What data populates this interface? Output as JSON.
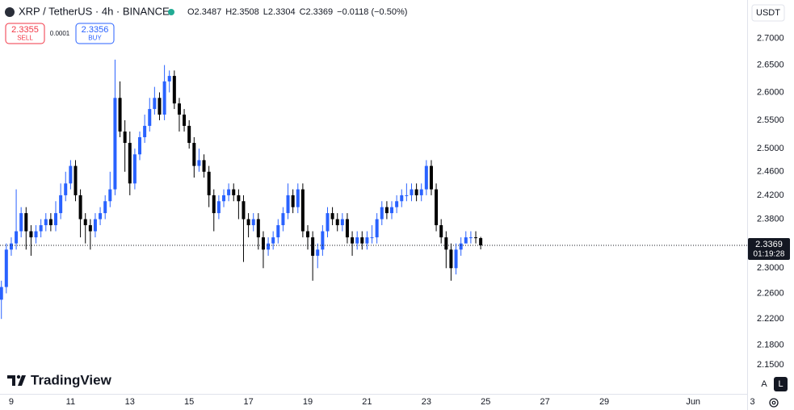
{
  "header": {
    "symbol": "XRP / TetherUS · 4h · BINANCE",
    "ohlc": [
      "O2.3487",
      "H2.3508",
      "L2.3304",
      "C2.3369",
      "−0.0118 (−0.50%)"
    ]
  },
  "trade": {
    "sell_price": "2.3355",
    "sell_label": "SELL",
    "spread": "0.0001",
    "buy_price": "2.3356",
    "buy_label": "BUY"
  },
  "currency": "USDT",
  "countdown": "01:19:28",
  "brand": "TradingView",
  "buttons": [
    "A",
    "L"
  ],
  "chart_data": {
    "type": "candlestick",
    "log_scale": true,
    "grid": false,
    "up_color": "#2962ff",
    "down_color": "#000000",
    "x": [
      8.667,
      8.833,
      9,
      9.167,
      9.333,
      9.5,
      9.667,
      9.833,
      10,
      10.167,
      10.333,
      10.5,
      10.667,
      10.833,
      11,
      11.167,
      11.333,
      11.5,
      11.667,
      11.833,
      12,
      12.167,
      12.333,
      12.5,
      12.667,
      12.833,
      13,
      13.167,
      13.333,
      13.5,
      13.667,
      13.833,
      14,
      14.167,
      14.333,
      14.5,
      14.667,
      14.833,
      15,
      15.167,
      15.333,
      15.5,
      15.667,
      15.833,
      16,
      16.167,
      16.333,
      16.5,
      16.667,
      16.833,
      17,
      17.167,
      17.333,
      17.5,
      17.667,
      17.833,
      18,
      18.167,
      18.333,
      18.5,
      18.667,
      18.833,
      19,
      19.167,
      19.333,
      19.5,
      19.667,
      19.833,
      20,
      20.167,
      20.333,
      20.5,
      20.667,
      20.833,
      21,
      21.167,
      21.333,
      21.5,
      21.667,
      21.833,
      22,
      22.167,
      22.333,
      22.5,
      22.667,
      22.833,
      23,
      23.167,
      23.333,
      23.5,
      23.667,
      23.833,
      24,
      24.167,
      24.333,
      24.5,
      24.667,
      24.833
    ],
    "open": [
      2.25,
      2.27,
      2.33,
      2.34,
      2.36,
      2.39,
      2.36,
      2.35,
      2.36,
      2.37,
      2.38,
      2.37,
      2.39,
      2.42,
      2.44,
      2.47,
      2.42,
      2.38,
      2.37,
      2.36,
      2.38,
      2.39,
      2.41,
      2.43,
      2.59,
      2.53,
      2.51,
      2.44,
      2.49,
      2.52,
      2.54,
      2.57,
      2.59,
      2.56,
      2.62,
      2.63,
      2.58,
      2.56,
      2.54,
      2.51,
      2.47,
      2.48,
      2.46,
      2.42,
      2.39,
      2.41,
      2.42,
      2.43,
      2.42,
      2.41,
      2.38,
      2.37,
      2.38,
      2.35,
      2.33,
      2.34,
      2.35,
      2.37,
      2.39,
      2.42,
      2.4,
      2.43,
      2.36,
      2.35,
      2.32,
      2.33,
      2.36,
      2.39,
      2.38,
      2.37,
      2.38,
      2.35,
      2.34,
      2.35,
      2.34,
      2.35,
      2.35,
      2.38,
      2.4,
      2.39,
      2.4,
      2.41,
      2.42,
      2.42,
      2.43,
      2.42,
      2.43,
      2.47,
      2.43,
      2.37,
      2.35,
      2.33,
      2.3,
      2.33,
      2.34,
      2.35,
      2.35,
      2.3487
    ],
    "high": [
      2.28,
      2.34,
      2.35,
      2.43,
      2.4,
      2.4,
      2.37,
      2.37,
      2.38,
      2.39,
      2.39,
      2.41,
      2.44,
      2.46,
      2.48,
      2.48,
      2.43,
      2.39,
      2.38,
      2.39,
      2.4,
      2.42,
      2.46,
      2.66,
      2.62,
      2.55,
      2.53,
      2.5,
      2.53,
      2.56,
      2.59,
      2.61,
      2.6,
      2.65,
      2.64,
      2.64,
      2.59,
      2.57,
      2.55,
      2.52,
      2.5,
      2.49,
      2.47,
      2.43,
      2.42,
      2.43,
      2.44,
      2.44,
      2.43,
      2.42,
      2.39,
      2.39,
      2.39,
      2.36,
      2.35,
      2.36,
      2.38,
      2.4,
      2.44,
      2.43,
      2.44,
      2.44,
      2.37,
      2.36,
      2.34,
      2.37,
      2.4,
      2.4,
      2.39,
      2.39,
      2.39,
      2.36,
      2.36,
      2.36,
      2.36,
      2.37,
      2.39,
      2.41,
      2.41,
      2.41,
      2.42,
      2.43,
      2.44,
      2.44,
      2.44,
      2.44,
      2.48,
      2.48,
      2.44,
      2.38,
      2.36,
      2.34,
      2.34,
      2.35,
      2.36,
      2.36,
      2.36,
      2.3508
    ],
    "low": [
      2.22,
      2.26,
      2.32,
      2.33,
      2.35,
      2.33,
      2.32,
      2.34,
      2.35,
      2.36,
      2.36,
      2.36,
      2.38,
      2.41,
      2.43,
      2.41,
      2.35,
      2.34,
      2.33,
      2.35,
      2.37,
      2.38,
      2.4,
      2.42,
      2.52,
      2.46,
      2.42,
      2.43,
      2.48,
      2.51,
      2.53,
      2.56,
      2.55,
      2.55,
      2.6,
      2.57,
      2.53,
      2.53,
      2.5,
      2.45,
      2.46,
      2.45,
      2.4,
      2.36,
      2.38,
      2.4,
      2.41,
      2.41,
      2.38,
      2.31,
      2.35,
      2.36,
      2.33,
      2.3,
      2.32,
      2.33,
      2.34,
      2.36,
      2.38,
      2.39,
      2.39,
      2.35,
      2.33,
      2.28,
      2.3,
      2.32,
      2.35,
      2.37,
      2.36,
      2.36,
      2.34,
      2.32,
      2.33,
      2.33,
      2.33,
      2.34,
      2.34,
      2.37,
      2.38,
      2.38,
      2.39,
      2.4,
      2.41,
      2.41,
      2.41,
      2.41,
      2.42,
      2.42,
      2.36,
      2.34,
      2.3,
      2.28,
      2.29,
      2.32,
      2.34,
      2.34,
      2.34,
      2.3304
    ],
    "close": [
      2.27,
      2.33,
      2.34,
      2.36,
      2.39,
      2.36,
      2.35,
      2.36,
      2.37,
      2.38,
      2.37,
      2.39,
      2.42,
      2.44,
      2.47,
      2.42,
      2.38,
      2.37,
      2.36,
      2.38,
      2.39,
      2.41,
      2.43,
      2.59,
      2.53,
      2.51,
      2.44,
      2.49,
      2.52,
      2.54,
      2.57,
      2.59,
      2.56,
      2.62,
      2.63,
      2.58,
      2.56,
      2.54,
      2.51,
      2.47,
      2.48,
      2.46,
      2.42,
      2.39,
      2.41,
      2.42,
      2.43,
      2.42,
      2.41,
      2.38,
      2.37,
      2.38,
      2.35,
      2.33,
      2.34,
      2.35,
      2.37,
      2.39,
      2.42,
      2.4,
      2.43,
      2.36,
      2.35,
      2.32,
      2.33,
      2.36,
      2.39,
      2.38,
      2.37,
      2.38,
      2.35,
      2.34,
      2.35,
      2.34,
      2.35,
      2.35,
      2.38,
      2.4,
      2.39,
      2.4,
      2.41,
      2.42,
      2.42,
      2.43,
      2.42,
      2.43,
      2.47,
      2.43,
      2.37,
      2.35,
      2.33,
      2.3,
      2.33,
      2.34,
      2.35,
      2.35,
      2.3487,
      2.3369
    ],
    "ylim": [
      2.107,
      2.773
    ],
    "yticks": [
      {
        "value": 2.7,
        "label": "2.7000"
      },
      {
        "value": 2.65,
        "label": "2.6500"
      },
      {
        "value": 2.6,
        "label": "2.6000"
      },
      {
        "value": 2.55,
        "label": "2.5500"
      },
      {
        "value": 2.5,
        "label": "2.5000"
      },
      {
        "value": 2.46,
        "label": "2.4600"
      },
      {
        "value": 2.42,
        "label": "2.4200"
      },
      {
        "value": 2.38,
        "label": "2.3800"
      },
      {
        "value": 2.3,
        "label": "2.3000"
      },
      {
        "value": 2.26,
        "label": "2.2600"
      },
      {
        "value": 2.22,
        "label": "2.2200"
      },
      {
        "value": 2.18,
        "label": "2.1800"
      },
      {
        "value": 2.15,
        "label": "2.1500"
      }
    ],
    "xlim": [
      8.62,
      33.82
    ],
    "xticks": [
      9,
      11,
      13,
      15,
      17,
      19,
      21,
      23,
      25,
      27,
      29,
      {
        "value": 32,
        "label": "Jun"
      },
      {
        "value": 34,
        "label": "3"
      }
    ]
  }
}
